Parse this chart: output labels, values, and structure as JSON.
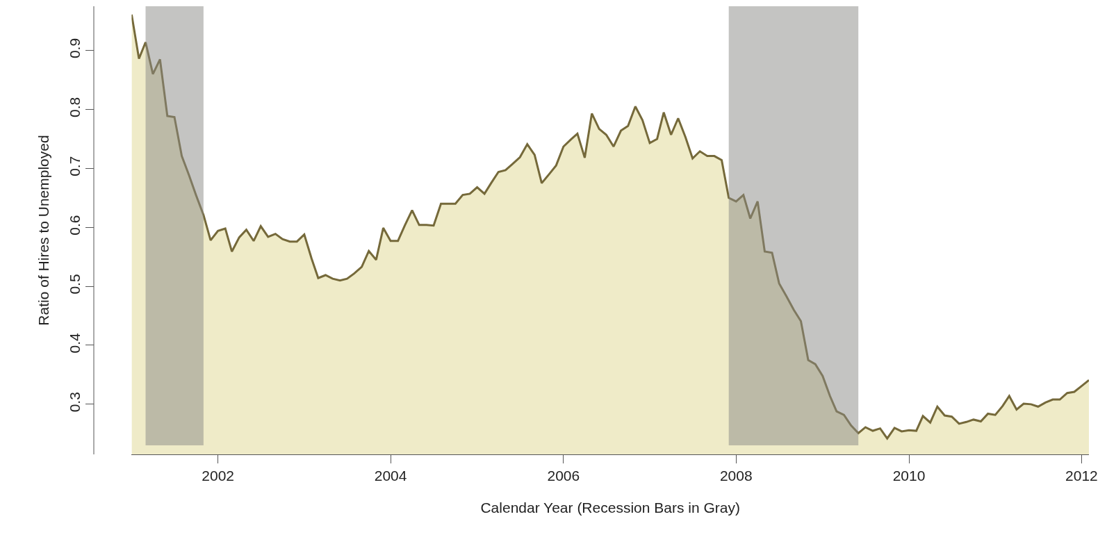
{
  "chart_data": {
    "type": "area",
    "xlabel": "Calendar Year (Recession Bars in Gray)",
    "ylabel": "Ratio of Hires to Unemployed",
    "x": [
      "2001-01",
      "2001-02",
      "2001-03",
      "2001-04",
      "2001-05",
      "2001-06",
      "2001-07",
      "2001-08",
      "2001-09",
      "2001-10",
      "2001-11",
      "2001-12",
      "2002-01",
      "2002-02",
      "2002-03",
      "2002-04",
      "2002-05",
      "2002-06",
      "2002-07",
      "2002-08",
      "2002-09",
      "2002-10",
      "2002-11",
      "2002-12",
      "2003-01",
      "2003-02",
      "2003-03",
      "2003-04",
      "2003-05",
      "2003-06",
      "2003-07",
      "2003-08",
      "2003-09",
      "2003-10",
      "2003-11",
      "2003-12",
      "2004-01",
      "2004-02",
      "2004-03",
      "2004-04",
      "2004-05",
      "2004-06",
      "2004-07",
      "2004-08",
      "2004-09",
      "2004-10",
      "2004-11",
      "2004-12",
      "2005-01",
      "2005-02",
      "2005-03",
      "2005-04",
      "2005-05",
      "2005-06",
      "2005-07",
      "2005-08",
      "2005-09",
      "2005-10",
      "2005-11",
      "2005-12",
      "2006-01",
      "2006-02",
      "2006-03",
      "2006-04",
      "2006-05",
      "2006-06",
      "2006-07",
      "2006-08",
      "2006-09",
      "2006-10",
      "2006-11",
      "2006-12",
      "2007-01",
      "2007-02",
      "2007-03",
      "2007-04",
      "2007-05",
      "2007-06",
      "2007-07",
      "2007-08",
      "2007-09",
      "2007-10",
      "2007-11",
      "2007-12",
      "2008-01",
      "2008-02",
      "2008-03",
      "2008-04",
      "2008-05",
      "2008-06",
      "2008-07",
      "2008-08",
      "2008-09",
      "2008-10",
      "2008-11",
      "2008-12",
      "2009-01",
      "2009-02",
      "2009-03",
      "2009-04",
      "2009-05",
      "2009-06",
      "2009-07",
      "2009-08",
      "2009-09",
      "2009-10",
      "2009-11",
      "2009-12",
      "2010-01",
      "2010-02",
      "2010-03",
      "2010-04",
      "2010-05",
      "2010-06",
      "2010-07",
      "2010-08",
      "2010-09",
      "2010-10",
      "2010-11",
      "2010-12",
      "2011-01",
      "2011-02",
      "2011-03",
      "2011-04",
      "2011-05",
      "2011-06",
      "2011-07",
      "2011-08",
      "2011-09",
      "2011-10",
      "2011-11",
      "2011-12",
      "2012-01",
      "2012-02"
    ],
    "series": [
      {
        "color": "#75693a",
        "values": [
          0.961,
          0.886,
          0.914,
          0.86,
          0.885,
          0.789,
          0.787,
          0.721,
          0.688,
          0.654,
          0.621,
          0.578,
          0.594,
          0.598,
          0.559,
          0.583,
          0.596,
          0.577,
          0.602,
          0.584,
          0.589,
          0.58,
          0.576,
          0.576,
          0.588,
          0.547,
          0.514,
          0.519,
          0.513,
          0.51,
          0.513,
          0.522,
          0.533,
          0.56,
          0.545,
          0.599,
          0.577,
          0.577,
          0.603,
          0.629,
          0.604,
          0.604,
          0.603,
          0.64,
          0.64,
          0.64,
          0.655,
          0.657,
          0.668,
          0.657,
          0.675,
          0.694,
          0.697,
          0.708,
          0.719,
          0.741,
          0.723,
          0.675,
          0.69,
          0.705,
          0.737,
          0.749,
          0.759,
          0.718,
          0.793,
          0.767,
          0.757,
          0.737,
          0.764,
          0.772,
          0.805,
          0.782,
          0.743,
          0.75,
          0.795,
          0.757,
          0.785,
          0.753,
          0.717,
          0.729,
          0.721,
          0.721,
          0.714,
          0.65,
          0.644,
          0.655,
          0.615,
          0.644,
          0.559,
          0.557,
          0.505,
          0.483,
          0.46,
          0.441,
          0.375,
          0.368,
          0.348,
          0.314,
          0.288,
          0.282,
          0.264,
          0.251,
          0.261,
          0.255,
          0.259,
          0.242,
          0.26,
          0.254,
          0.256,
          0.255,
          0.28,
          0.269,
          0.296,
          0.281,
          0.279,
          0.267,
          0.27,
          0.274,
          0.271,
          0.284,
          0.282,
          0.297,
          0.314,
          0.291,
          0.301,
          0.3,
          0.296,
          0.303,
          0.308,
          0.308,
          0.319,
          0.321,
          0.331,
          0.341
        ]
      }
    ],
    "xticks": [
      {
        "value": "2002-01-01",
        "label": "2002"
      },
      {
        "value": "2004-01-01",
        "label": "2004"
      },
      {
        "value": "2006-01-01",
        "label": "2006"
      },
      {
        "value": "2008-01-01",
        "label": "2008"
      },
      {
        "value": "2010-01-01",
        "label": "2010"
      },
      {
        "value": "2012-01-01",
        "label": "2012"
      }
    ],
    "xlim": [
      "2001-01",
      "2012-02"
    ],
    "ylim": [
      0.215,
      0.975
    ],
    "yticks": [
      0.3,
      0.4,
      0.5,
      0.6,
      0.7,
      0.8,
      0.9
    ],
    "bands": [
      {
        "axis": "x",
        "from": "2001-03",
        "to": "2001-11",
        "color": "#8a8a86"
      },
      {
        "axis": "x",
        "from": "2007-12",
        "to": "2009-06",
        "color": "#8a8a86"
      }
    ],
    "grid": false
  }
}
